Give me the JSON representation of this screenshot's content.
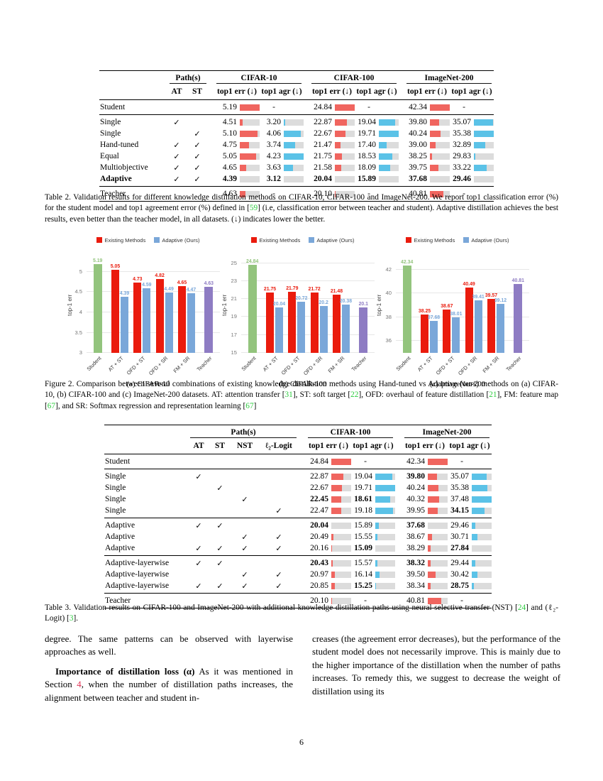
{
  "page": {
    "number": "6"
  },
  "colors": {
    "table_red": "#f0655f",
    "table_blue": "#5bc2e7",
    "track_gray": "#dcdcdc",
    "chart_red": "#ea1b0d",
    "chart_blue": "#7aa7d9",
    "chart_green": "#93c47d",
    "chart_purple": "#8e7cc3",
    "ref_green": "#2ecc40",
    "link_red": "#e03455"
  },
  "table2": {
    "groups": [
      {
        "label": "Path(s)",
        "cols": [
          1,
          2
        ]
      },
      {
        "label": "CIFAR-10",
        "cols": [
          3,
          4
        ]
      },
      {
        "label": "CIFAR-100",
        "cols": [
          5,
          6
        ]
      },
      {
        "label": "ImageNet-200",
        "cols": [
          7,
          8
        ]
      }
    ],
    "check_headers": [
      "AT",
      "ST"
    ],
    "data_headers": [
      "top1 err (↓)",
      "top1 agr (↓)",
      "top1 err (↓)",
      "top1 agr (↓)",
      "top1 err (↓)",
      "top1 agr (↓)"
    ],
    "col_colors": [
      "red",
      "blue",
      "red",
      "blue",
      "red",
      "blue"
    ],
    "sections": [
      [
        {
          "label": "Student",
          "checks": [
            0,
            0
          ],
          "vals": [
            "5.19",
            "-",
            "24.84",
            "-",
            "42.34",
            "-"
          ]
        }
      ],
      [
        {
          "label": "Single",
          "checks": [
            1,
            0
          ],
          "vals": [
            "4.51",
            "3.20",
            "22.87",
            "19.04",
            "39.80",
            "35.07"
          ]
        },
        {
          "label": "Single",
          "checks": [
            0,
            1
          ],
          "vals": [
            "5.10",
            "4.06",
            "22.67",
            "19.71",
            "40.24",
            "35.38"
          ]
        },
        {
          "label": "Hand-tuned",
          "checks": [
            1,
            1
          ],
          "vals": [
            "4.75",
            "3.74",
            "21.47",
            "17.40",
            "39.00",
            "32.89"
          ]
        },
        {
          "label": "Equal",
          "checks": [
            1,
            1
          ],
          "vals": [
            "5.05",
            "4.23",
            "21.75",
            "18.53",
            "38.25",
            "29.83"
          ]
        },
        {
          "label": "Multiobjective",
          "checks": [
            1,
            1
          ],
          "vals": [
            "4.65",
            "3.63",
            "21.58",
            "18.09",
            "39.75",
            "33.22"
          ]
        },
        {
          "label": "Adaptive",
          "bold": true,
          "checks": [
            1,
            1
          ],
          "vals": [
            "*4.39",
            "*3.12",
            "*20.04",
            "*15.89",
            "*37.68",
            "*29.46"
          ]
        }
      ],
      [
        {
          "label": "Teacher",
          "checks": [
            0,
            0
          ],
          "vals": [
            "4.63",
            "-",
            "20.10",
            "-",
            "40.81",
            "-"
          ]
        }
      ]
    ],
    "caption": [
      {
        "t": "Table 2. Validation results for different knowledge distillation methods on CIFAR-10, CIFAR-100 and ImageNet-200.  We report top1 classification error (%) for the student model and top1 agreement error (%) defined in ["
      },
      {
        "t": "59",
        "c": "g"
      },
      {
        "t": "] (i.e, classification error between teacher and student). Adaptive distillation achieves the best results, even better than the teacher model, in all datasets. (↓) indicates lower the better."
      }
    ]
  },
  "table3": {
    "groups": [
      {
        "label": "Path(s)",
        "cols": [
          1,
          2,
          3,
          4
        ]
      },
      {
        "label": "CIFAR-100",
        "cols": [
          5,
          6
        ]
      },
      {
        "label": "ImageNet-200",
        "cols": [
          7,
          8
        ]
      }
    ],
    "check_headers": [
      "AT",
      "ST",
      "NST",
      "ℓ₂-Logit"
    ],
    "data_headers": [
      "top1 err (↓)",
      "top1 agr (↓)",
      "top1 err (↓)",
      "top1 agr (↓)"
    ],
    "col_colors": [
      "red",
      "blue",
      "red",
      "blue"
    ],
    "sections": [
      [
        {
          "label": "Student",
          "checks": [
            0,
            0,
            0,
            0
          ],
          "vals": [
            "24.84",
            "-",
            "42.34",
            "-"
          ]
        }
      ],
      [
        {
          "label": "Single",
          "checks": [
            1,
            0,
            0,
            0
          ],
          "vals": [
            "22.87",
            "19.04",
            "*39.80",
            "35.07"
          ]
        },
        {
          "label": "Single",
          "checks": [
            0,
            1,
            0,
            0
          ],
          "vals": [
            "22.67",
            "19.71",
            "40.24",
            "35.38"
          ]
        },
        {
          "label": "Single",
          "checks": [
            0,
            0,
            1,
            0
          ],
          "vals": [
            "*22.45",
            "*18.61",
            "40.32",
            "37.48"
          ]
        },
        {
          "label": "Single",
          "checks": [
            0,
            0,
            0,
            1
          ],
          "vals": [
            "22.47",
            "19.18",
            "39.95",
            "*34.15"
          ]
        }
      ],
      [
        {
          "label": "Adaptive",
          "checks": [
            1,
            1,
            0,
            0
          ],
          "vals": [
            "*20.04",
            "15.89",
            "*37.68",
            "29.46"
          ]
        },
        {
          "label": "Adaptive",
          "checks": [
            0,
            0,
            1,
            1
          ],
          "vals": [
            "20.49",
            "15.55",
            "38.67",
            "30.71"
          ]
        },
        {
          "label": "Adaptive",
          "checks": [
            1,
            1,
            1,
            1
          ],
          "vals": [
            "20.16",
            "*15.09",
            "38.29",
            "*27.84"
          ]
        }
      ],
      [
        {
          "label": "Adaptive-layerwise",
          "checks": [
            1,
            1,
            0,
            0
          ],
          "vals": [
            "*20.43",
            "15.57",
            "*38.32",
            "29.44"
          ]
        },
        {
          "label": "Adaptive-layerwise",
          "checks": [
            0,
            0,
            1,
            1
          ],
          "vals": [
            "20.97",
            "16.14",
            "39.50",
            "30.42"
          ]
        },
        {
          "label": "Adaptive-layerwise",
          "checks": [
            1,
            1,
            1,
            1
          ],
          "vals": [
            "20.85",
            "*15.25",
            "38.34",
            "*28.75"
          ]
        }
      ],
      [
        {
          "label": "Teacher",
          "checks": [
            0,
            0,
            0,
            0
          ],
          "vals": [
            "20.10",
            "-",
            "40.81",
            "-"
          ]
        }
      ]
    ],
    "caption": [
      {
        "t": "Table 3. Validation results on CIFAR-100 and ImageNet-200 with additional knowledge distillation paths using neural selective transfer (NST) ["
      },
      {
        "t": "24",
        "c": "g"
      },
      {
        "t": "] and (ℓ₂-Logit) ["
      },
      {
        "t": "3",
        "c": "g"
      },
      {
        "t": "]."
      }
    ]
  },
  "figure2": {
    "legend": [
      "Existing Methods",
      "Adaptive (Ours)"
    ],
    "caption": [
      {
        "t": "Figure 2. Comparison between several combinations of existing knowledge distillation methods using Hand-tuned vs Adaptive (ours) methods on (a) CIFAR-10, (b) CIFAR-100 and (c) ImageNet-200 datasets. AT: attention transfer ["
      },
      {
        "t": "31",
        "c": "g"
      },
      {
        "t": "], ST: soft target ["
      },
      {
        "t": "22",
        "c": "g"
      },
      {
        "t": "], OFD: overhaul of feature distillation ["
      },
      {
        "t": "21",
        "c": "g"
      },
      {
        "t": "], FM: feature map ["
      },
      {
        "t": "67",
        "c": "g"
      },
      {
        "t": "], and SR: Softmax regression and representation learning ["
      },
      {
        "t": "67",
        "c": "g"
      },
      {
        "t": "]"
      }
    ]
  },
  "chart_data": [
    {
      "type": "bar",
      "subcaption": "(a) CIFAR-10",
      "ylabel": "top-1 err",
      "ymin": 3,
      "ymax": 5.35,
      "yticks": [
        3,
        3.5,
        4,
        4.5,
        5
      ],
      "categories": [
        "Student",
        "AT + ST",
        "OFD + ST",
        "OFD + SR",
        "FM + SR",
        "Teacher"
      ],
      "bars": [
        [
          {
            "v": 5.19,
            "label": "5.19",
            "color": "green"
          }
        ],
        [
          {
            "v": 5.05,
            "label": "5.05",
            "color": "red"
          },
          {
            "v": 4.39,
            "label": "4.39",
            "color": "blue"
          }
        ],
        [
          {
            "v": 4.73,
            "label": "4.73",
            "color": "red"
          },
          {
            "v": 4.59,
            "label": "4.59",
            "color": "blue"
          }
        ],
        [
          {
            "v": 4.82,
            "label": "4.82",
            "color": "red"
          },
          {
            "v": 4.49,
            "label": "4.49",
            "color": "blue"
          }
        ],
        [
          {
            "v": 4.65,
            "label": "4.65",
            "color": "red"
          },
          {
            "v": 4.47,
            "label": "4.47",
            "color": "blue"
          }
        ],
        [
          {
            "v": 4.63,
            "label": "4.63",
            "color": "purple"
          }
        ]
      ]
    },
    {
      "type": "bar",
      "subcaption": "(b) CIFAR-100",
      "ylabel": "top-1 err",
      "ymin": 15,
      "ymax": 25.6,
      "yticks": [
        15,
        17,
        19,
        21,
        23,
        25
      ],
      "categories": [
        "Student",
        "AT + ST",
        "OFD + ST",
        "OFD + SR",
        "FM + SR",
        "Teacher"
      ],
      "bars": [
        [
          {
            "v": 24.84,
            "label": "24.84",
            "color": "green"
          }
        ],
        [
          {
            "v": 21.75,
            "label": "21.75",
            "color": "red"
          },
          {
            "v": 20.04,
            "label": "20.04",
            "color": "blue"
          }
        ],
        [
          {
            "v": 21.79,
            "label": "21.79",
            "color": "red"
          },
          {
            "v": 20.72,
            "label": "20.72",
            "color": "blue"
          }
        ],
        [
          {
            "v": 21.72,
            "label": "21.72",
            "color": "red"
          },
          {
            "v": 20.2,
            "label": "20.2",
            "color": "blue"
          }
        ],
        [
          {
            "v": 21.48,
            "label": "21.48",
            "color": "red"
          },
          {
            "v": 20.38,
            "label": "20.38",
            "color": "blue"
          }
        ],
        [
          {
            "v": 20.1,
            "label": "20.1",
            "color": "purple"
          }
        ]
      ]
    },
    {
      "type": "bar",
      "subcaption": "(c) ImageNet-200",
      "ylabel": "top-1 err",
      "ymin": 35,
      "ymax": 43,
      "yticks": [
        36,
        38,
        40,
        42
      ],
      "categories": [
        "Student",
        "AT + ST",
        "OFD + ST",
        "OFD + SR",
        "FM + SR",
        "Teacher"
      ],
      "bars": [
        [
          {
            "v": 42.34,
            "label": "42.34",
            "color": "green"
          }
        ],
        [
          {
            "v": 38.25,
            "label": "38.25",
            "color": "red"
          },
          {
            "v": 37.68,
            "label": "37.68",
            "color": "blue"
          }
        ],
        [
          {
            "v": 38.67,
            "label": "38.67",
            "color": "red"
          },
          {
            "v": 38.01,
            "label": "38.01",
            "color": "blue"
          }
        ],
        [
          {
            "v": 40.49,
            "label": "40.49",
            "color": "red"
          },
          {
            "v": 39.41,
            "label": "39.41",
            "color": "blue"
          }
        ],
        [
          {
            "v": 39.57,
            "label": "39.57",
            "color": "red"
          },
          {
            "v": 39.12,
            "label": "39.12",
            "color": "blue"
          }
        ],
        [
          {
            "v": 40.81,
            "label": "40.81",
            "color": "purple"
          }
        ]
      ]
    }
  ],
  "body": {
    "left": [
      {
        "indent": false,
        "segments": [
          {
            "t": "degree.  The same patterns can be observed with layerwise approaches as well."
          }
        ]
      },
      {
        "indent": true,
        "segments": [
          {
            "t": "Importance of distillation loss (α)",
            "b": true
          },
          {
            "t": "  As it was mentioned in Section "
          },
          {
            "t": "4",
            "c": "r"
          },
          {
            "t": ", when the number of distillation paths increases, the alignment between teacher and student in-"
          }
        ]
      }
    ],
    "right": [
      {
        "indent": false,
        "segments": [
          {
            "t": "creases (the agreement error decreases), but the performance of the student model does not necessarily improve. This is mainly due to the higher importance of the distillation when the number of paths increases.  To remedy this, we suggest to decrease the weight of distillation using its"
          }
        ]
      }
    ]
  }
}
